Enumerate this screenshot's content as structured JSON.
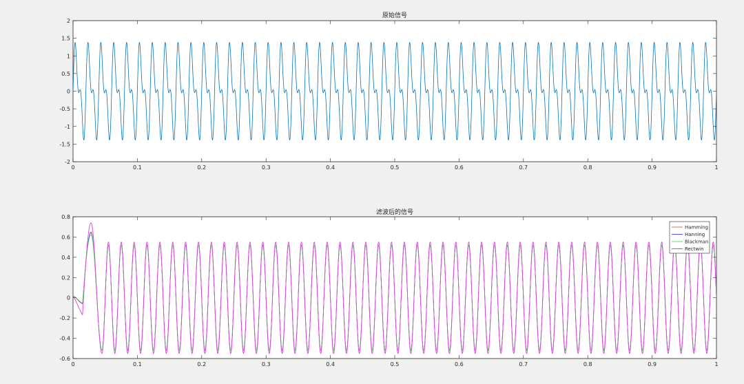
{
  "figure": {
    "background": "#f0f0f0",
    "axes_background": "#ffffff",
    "axis_color": "#262626"
  },
  "chart_data": [
    {
      "type": "line",
      "title": "原始信号",
      "xlabel": "",
      "ylabel": "",
      "xlim": [
        0,
        1
      ],
      "ylim": [
        -2,
        2
      ],
      "xticks": [
        "0",
        "0.1",
        "0.2",
        "0.3",
        "0.4",
        "0.5",
        "0.6",
        "0.7",
        "0.8",
        "0.9",
        "1"
      ],
      "yticks": [
        "-2",
        "-1.5",
        "-1",
        "-0.5",
        "0",
        "0.5",
        "1",
        "1.5",
        "2"
      ],
      "grid": false,
      "series": [
        {
          "color": "#0072bd",
          "formula": "sin(2*pi*50*t) + 0.6*sin(2*pi*100*t)",
          "x_start": 0,
          "x_end": 1,
          "x_step": 0.001,
          "y_min": -1.52,
          "y_max": 1.52
        }
      ]
    },
    {
      "type": "line",
      "title": "滤波后的信号",
      "xlabel": "",
      "ylabel": "",
      "xlim": [
        0,
        1
      ],
      "ylim": [
        -0.6,
        0.8
      ],
      "xticks": [
        "0",
        "0.1",
        "0.2",
        "0.3",
        "0.4",
        "0.5",
        "0.6",
        "0.7",
        "0.8",
        "0.9",
        "1"
      ],
      "yticks": [
        "-0.6",
        "-0.4",
        "-0.2",
        "0",
        "0.2",
        "0.4",
        "0.6",
        "0.8"
      ],
      "grid": false,
      "legend": {
        "location": "top-right"
      },
      "series": [
        {
          "name": "Hamming",
          "color": "#e57050",
          "steady_amplitude": 0.52,
          "transient_peak": 0.64,
          "transient_trough": -0.04
        },
        {
          "name": "Hanning",
          "color": "#5050e8",
          "steady_amplitude": 0.52,
          "transient_peak": 0.65,
          "transient_trough": -0.04
        },
        {
          "name": "Blackman",
          "color": "#66dd66",
          "steady_amplitude": 0.52,
          "transient_peak": 0.62,
          "transient_trough": -0.03
        },
        {
          "name": "Rectwin",
          "color": "#e040e0",
          "steady_amplitude": 0.55,
          "transient_peak": 0.74,
          "transient_trough": -0.15
        }
      ],
      "frequency_hz": 50,
      "settle_x": 0.045
    }
  ]
}
